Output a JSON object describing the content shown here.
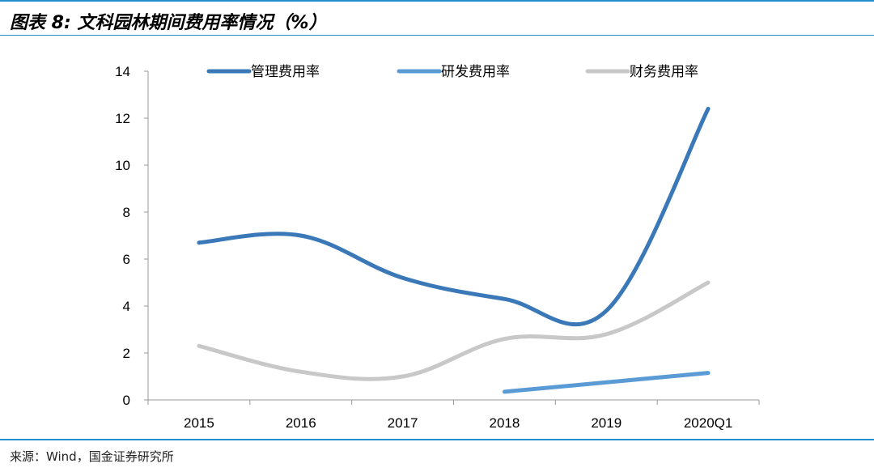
{
  "header": {
    "title": "图表 8:  文科园林期间费用率情况（%）"
  },
  "footer": {
    "source": "来源：Wind，国金证券研究所"
  },
  "chart_data": {
    "type": "line",
    "categories": [
      "2015",
      "2016",
      "2017",
      "2018",
      "2019",
      "2020Q1"
    ],
    "ylim": [
      0,
      14
    ],
    "yticks": [
      0,
      2,
      4,
      6,
      8,
      10,
      12,
      14
    ],
    "grid": false,
    "legend_position": "top",
    "series": [
      {
        "name": "管理费用率",
        "color": "#3a78b8",
        "values": [
          6.7,
          7.0,
          5.2,
          4.3,
          3.8,
          12.4
        ]
      },
      {
        "name": "研发费用率",
        "color": "#5b9bd5",
        "values": [
          null,
          null,
          null,
          0.35,
          0.75,
          1.15
        ]
      },
      {
        "name": "财务费用率",
        "color": "#c8c8c8",
        "values": [
          2.3,
          1.2,
          1.0,
          2.6,
          2.8,
          5.0
        ]
      }
    ]
  }
}
